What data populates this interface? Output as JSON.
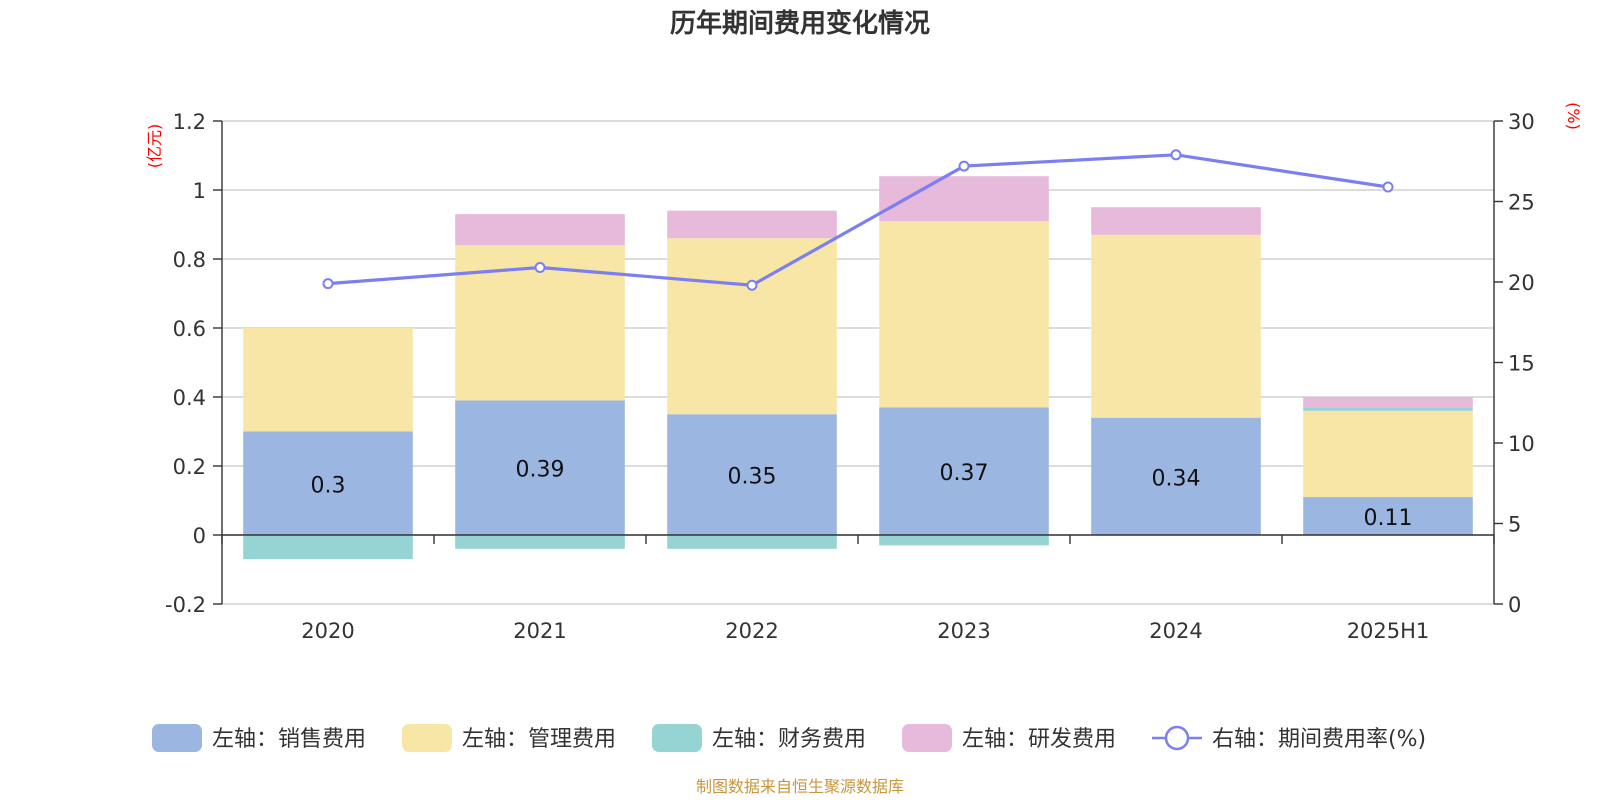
{
  "chart_data": {
    "type": "bar",
    "title": "历年期间费用变化情况",
    "categories": [
      "2020",
      "2021",
      "2022",
      "2023",
      "2024",
      "2025H1"
    ],
    "stacked": true,
    "left_axis": {
      "unit": "(亿元)",
      "min": -0.2,
      "max": 1.2,
      "ticks": [
        -0.2,
        0,
        0.2,
        0.4,
        0.6,
        0.8,
        1,
        1.2
      ],
      "tick_labels": [
        "-0.2",
        "0",
        "0.2",
        "0.4",
        "0.6",
        "0.8",
        "1",
        "1.2"
      ]
    },
    "right_axis": {
      "unit": "(%)",
      "min": 0,
      "max": 30,
      "ticks": [
        0,
        5,
        10,
        15,
        20,
        25,
        30
      ],
      "tick_labels": [
        "0",
        "5",
        "10",
        "15",
        "20",
        "25",
        "30"
      ]
    },
    "series": [
      {
        "name": "左轴：销售费用",
        "type": "bar",
        "axis": "left",
        "color": "#9bb6e0",
        "values": [
          0.3,
          0.39,
          0.35,
          0.37,
          0.34,
          0.11
        ],
        "labels": [
          "0.3",
          "0.39",
          "0.35",
          "0.37",
          "0.34",
          "0.11"
        ]
      },
      {
        "name": "左轴：管理费用",
        "type": "bar",
        "axis": "left",
        "color": "#f8e6a6",
        "values": [
          0.3,
          0.45,
          0.51,
          0.54,
          0.53,
          0.25
        ]
      },
      {
        "name": "左轴：财务费用",
        "type": "bar",
        "axis": "left",
        "color": "#96d4d4",
        "values": [
          -0.07,
          -0.04,
          -0.04,
          -0.03,
          0.0,
          0.01
        ]
      },
      {
        "name": "左轴：研发费用",
        "type": "bar",
        "axis": "left",
        "color": "#e7b9da",
        "values": [
          0.0,
          0.09,
          0.08,
          0.13,
          0.08,
          0.03
        ]
      },
      {
        "name": "右轴：期间费用率(%)",
        "type": "line",
        "axis": "right",
        "color": "#7b7ff0",
        "values": [
          19.9,
          20.9,
          19.8,
          27.2,
          27.9,
          25.9
        ]
      }
    ],
    "grid": true,
    "legend_position": "bottom"
  },
  "footer": {
    "source": "制图数据来自恒生聚源数据库"
  }
}
